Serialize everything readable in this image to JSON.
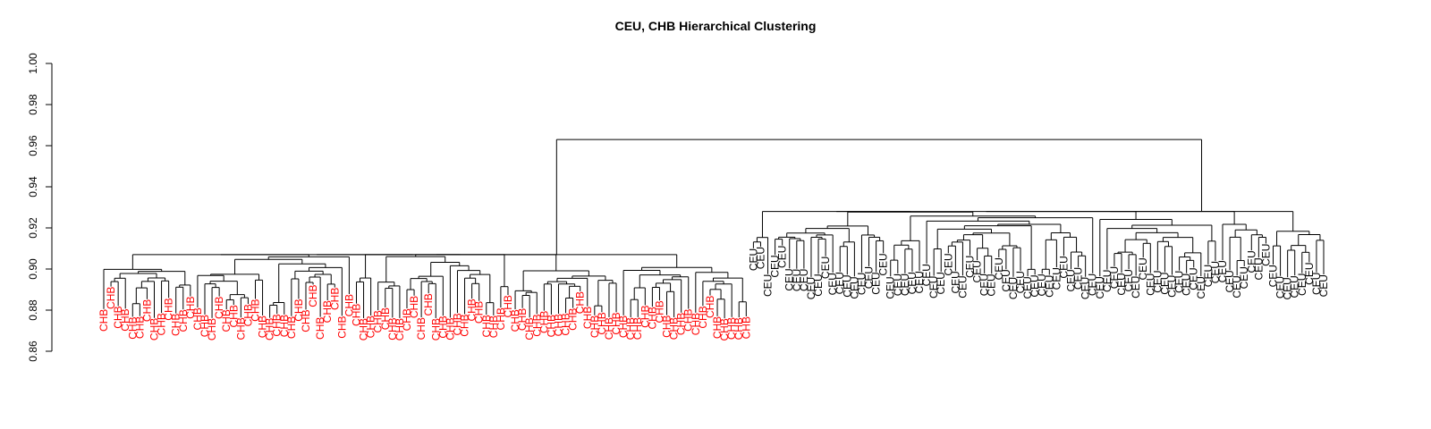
{
  "chart_data": {
    "type": "dendrogram",
    "title": "CEU, CHB Hierarchical Clustering",
    "xlabel": "",
    "ylabel": "",
    "ylim": [
      0.86,
      1.0
    ],
    "yticks": [
      0.86,
      0.88,
      0.9,
      0.92,
      0.94,
      0.96,
      0.98,
      1.0
    ],
    "ytick_labels": [
      "0.86",
      "0.88",
      "0.90",
      "0.92",
      "0.94",
      "0.96",
      "0.98",
      "1.00"
    ],
    "grid": false,
    "root_merge_height": 0.963,
    "groups": [
      {
        "label": "CHB",
        "color": "#ff0000",
        "leaf_count": 90,
        "top_merge_height": 0.907,
        "leaf_height_range": [
          0.876,
          0.904
        ]
      },
      {
        "label": "CEU",
        "color": "#000000",
        "leaf_count": 80,
        "top_merge_height": 0.928,
        "leaf_height_range": [
          0.896,
          0.926
        ]
      }
    ]
  }
}
